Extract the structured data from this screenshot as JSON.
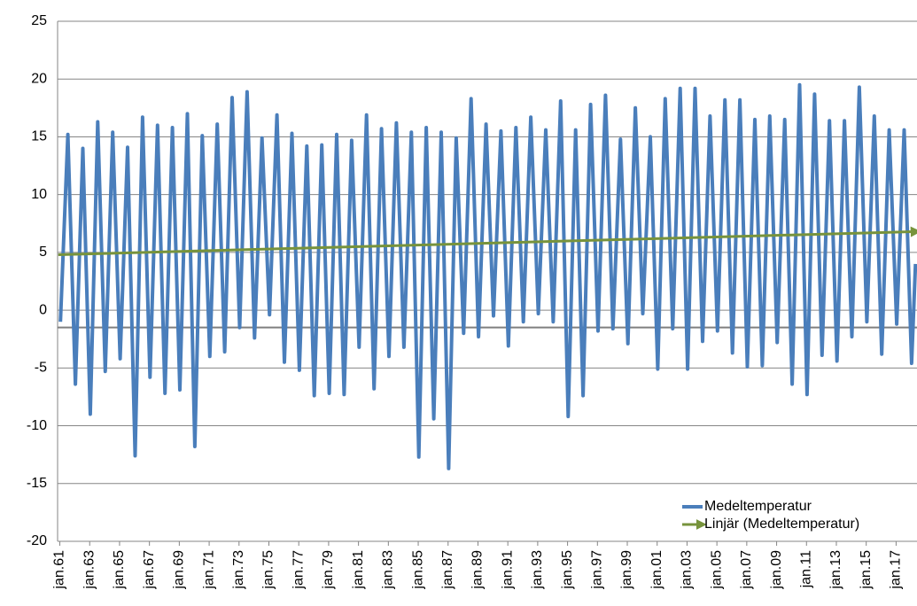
{
  "chart_data": {
    "type": "line",
    "x": [
      1961.04,
      1961.54,
      1962.04,
      1962.54,
      1963.04,
      1963.54,
      1964.04,
      1964.54,
      1965.04,
      1965.54,
      1966.04,
      1966.54,
      1967.04,
      1967.54,
      1968.04,
      1968.54,
      1969.04,
      1969.54,
      1970.04,
      1970.54,
      1971.04,
      1971.54,
      1972.04,
      1972.54,
      1973.04,
      1973.54,
      1974.04,
      1974.54,
      1975.04,
      1975.54,
      1976.04,
      1976.54,
      1977.04,
      1977.54,
      1978.04,
      1978.54,
      1979.04,
      1979.54,
      1980.04,
      1980.54,
      1981.04,
      1981.54,
      1982.04,
      1982.54,
      1983.04,
      1983.54,
      1984.04,
      1984.54,
      1985.04,
      1985.54,
      1986.04,
      1986.54,
      1987.04,
      1987.54,
      1988.04,
      1988.54,
      1989.04,
      1989.54,
      1990.04,
      1990.54,
      1991.04,
      1991.54,
      1992.04,
      1992.54,
      1993.04,
      1993.54,
      1994.04,
      1994.54,
      1995.04,
      1995.54,
      1996.04,
      1996.54,
      1997.04,
      1997.54,
      1998.04,
      1998.54,
      1999.04,
      1999.54,
      2000.04,
      2000.54,
      2001.04,
      2001.54,
      2002.04,
      2002.54,
      2003.04,
      2003.54,
      2004.04,
      2004.54,
      2005.04,
      2005.54,
      2006.04,
      2006.54,
      2007.04,
      2007.54,
      2008.04,
      2008.54,
      2009.04,
      2009.54,
      2010.04,
      2010.54,
      2011.04,
      2011.54,
      2012.04,
      2012.54,
      2013.04,
      2013.54,
      2014.04,
      2014.54,
      2015.04,
      2015.54,
      2016.04,
      2016.54,
      2017.04,
      2017.54,
      2018.04,
      2018.3
    ],
    "series": [
      {
        "name": "Medeltemperatur",
        "color": "#4a7ebb",
        "values": [
          -1.0,
          15.2,
          -6.4,
          14.0,
          -9.0,
          16.3,
          -5.3,
          15.4,
          -4.2,
          14.1,
          -12.6,
          16.7,
          -5.8,
          16.0,
          -7.2,
          15.8,
          -6.9,
          17.0,
          -11.8,
          15.1,
          -4.0,
          16.1,
          -3.6,
          18.4,
          -1.5,
          18.9,
          -2.4,
          14.9,
          -0.4,
          16.9,
          -4.5,
          15.3,
          -5.2,
          14.2,
          -7.4,
          14.3,
          -7.2,
          15.2,
          -7.3,
          14.7,
          -3.2,
          16.9,
          -6.8,
          15.7,
          -4.0,
          16.2,
          -3.2,
          15.4,
          -12.7,
          15.8,
          -9.4,
          15.4,
          -13.7,
          14.9,
          -2.0,
          18.3,
          -2.3,
          16.1,
          -0.5,
          15.5,
          -3.1,
          15.8,
          -1.0,
          16.7,
          -0.3,
          15.6,
          -1.0,
          18.1,
          -9.2,
          15.6,
          -7.4,
          17.8,
          -1.8,
          18.6,
          -1.6,
          14.8,
          -2.9,
          17.5,
          -0.3,
          15.0,
          -5.1,
          18.3,
          -1.6,
          19.2,
          -5.1,
          19.2,
          -2.7,
          16.8,
          -1.8,
          18.2,
          -3.7,
          18.2,
          -4.9,
          16.5,
          -4.8,
          16.8,
          -2.8,
          16.5,
          -6.4,
          19.5,
          -7.3,
          18.7,
          -3.9,
          16.4,
          -4.4,
          16.4,
          -2.3,
          19.3,
          -1.0,
          16.8,
          -3.8,
          15.6,
          -1.2,
          15.6,
          -4.6,
          4.0
        ]
      },
      {
        "name": "Linjär (Medeltemperatur)",
        "color": "#77933c",
        "x": [
          1960.9,
          2018.4
        ],
        "values": [
          4.8,
          6.8
        ],
        "arrow": true
      }
    ],
    "categories": [
      "jan.61",
      "jan.63",
      "jan.65",
      "jan.67",
      "jan.69",
      "jan.71",
      "jan.73",
      "jan.75",
      "jan.77",
      "jan.79",
      "jan.81",
      "jan.83",
      "jan.85",
      "jan.87",
      "jan.89",
      "jan.91",
      "jan.93",
      "jan.95",
      "jan.97",
      "jan.99",
      "jan.01",
      "jan.03",
      "jan.05",
      "jan.07",
      "jan.09",
      "jan.11",
      "jan.13",
      "jan.15",
      "jan.17"
    ],
    "xticks": [
      1961,
      1963,
      1965,
      1967,
      1969,
      1971,
      1973,
      1975,
      1977,
      1979,
      1981,
      1983,
      1985,
      1987,
      1989,
      1991,
      1993,
      1995,
      1997,
      1999,
      2001,
      2003,
      2005,
      2007,
      2009,
      2011,
      2013,
      2015,
      2017
    ],
    "xlim": [
      1960.85,
      2018.4
    ],
    "ylim": [
      -20,
      25
    ],
    "yticks": [
      -20,
      -15,
      -10,
      -5,
      0,
      5,
      10,
      15,
      20,
      25
    ],
    "reference_line": {
      "value": -1.5,
      "color": "#7f7f7f"
    },
    "grid": true,
    "legend": "bottom-right"
  }
}
